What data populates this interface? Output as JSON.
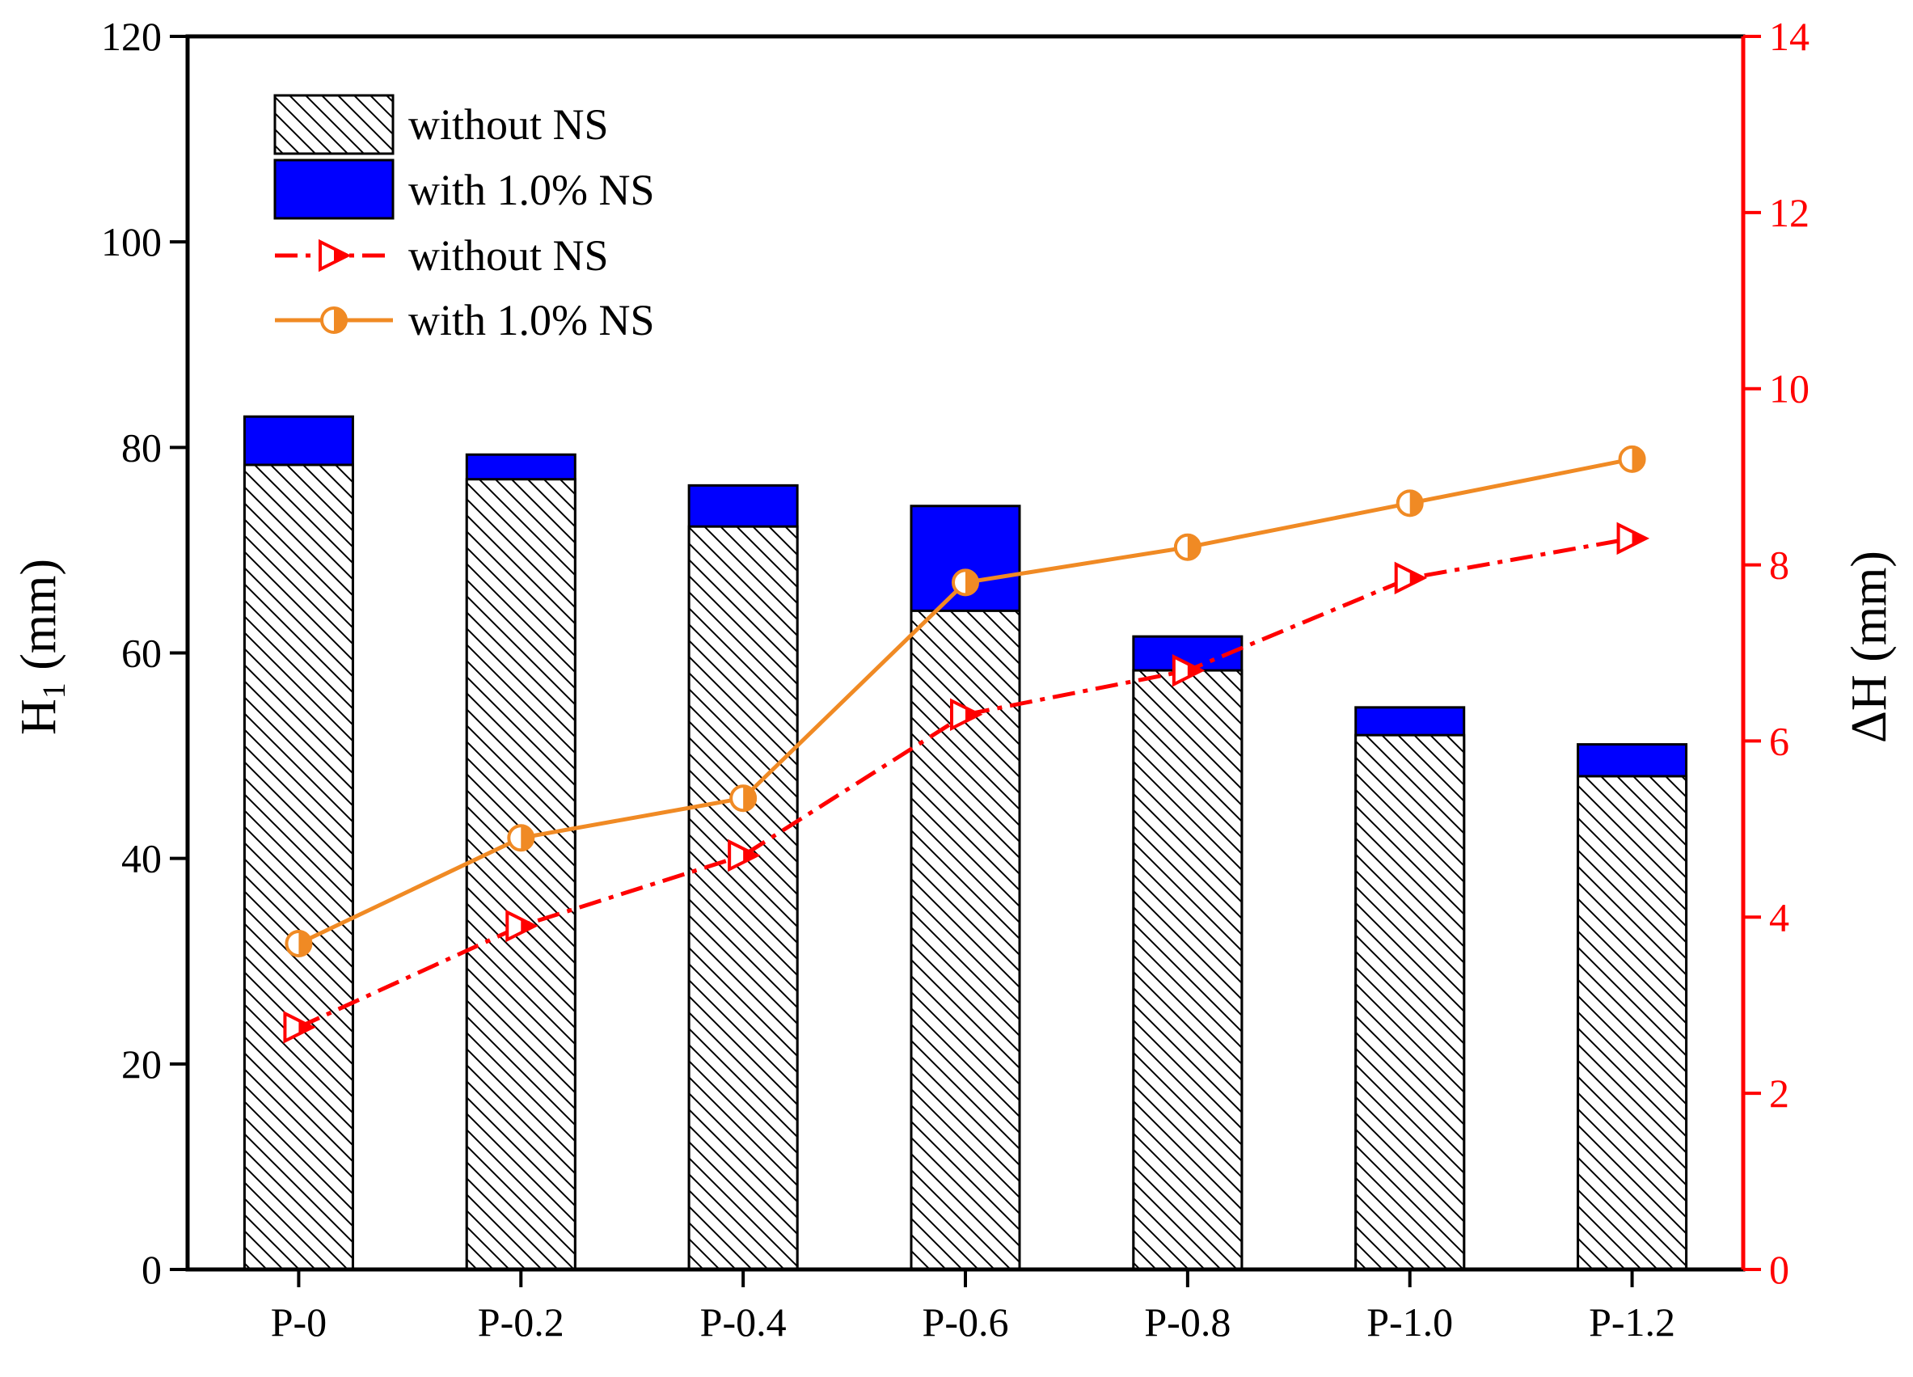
{
  "chart_data": {
    "type": "bar+line",
    "title": "",
    "categories": [
      "P-0",
      "P-0.2",
      "P-0.4",
      "P-0.6",
      "P-0.8",
      "P-1.0",
      "P-1.2"
    ],
    "bars": [
      {
        "name": "without NS",
        "style": "hatched",
        "values": [
          78.3,
          76.9,
          72.3,
          64.1,
          58.3,
          52.0,
          48.0
        ]
      },
      {
        "name": "with 1.0% NS",
        "style": "solid",
        "color": "#0000ff",
        "values": [
          83.0,
          79.3,
          76.3,
          74.3,
          61.6,
          54.7,
          51.1
        ]
      }
    ],
    "lines": [
      {
        "name": "without NS",
        "color": "#ff0000",
        "axis": "right",
        "dash": "dash-dot",
        "marker": "half-filled-right-triangle",
        "values": [
          2.75,
          3.9,
          4.7,
          6.3,
          6.8,
          7.85,
          8.3
        ]
      },
      {
        "name": "with 1.0% NS",
        "color": "#f08a24",
        "axis": "right",
        "dash": "solid",
        "marker": "half-filled-circle",
        "values": [
          3.7,
          4.9,
          5.35,
          7.8,
          8.2,
          8.7,
          9.2
        ]
      }
    ],
    "left_axis": {
      "label_main": "H",
      "label_sub": "1",
      "label_unit": " (mm)",
      "min": 0,
      "max": 120,
      "ticks": [
        0,
        20,
        40,
        60,
        80,
        100,
        120
      ]
    },
    "right_axis": {
      "label": "ΔH (mm)",
      "color": "#ff0000",
      "min": 0,
      "max": 14,
      "ticks": [
        0,
        2,
        4,
        6,
        8,
        10,
        12,
        14
      ]
    },
    "legend": {
      "position": "top-left",
      "entries": [
        "without NS",
        "with 1.0% NS",
        "without NS",
        "with 1.0% NS"
      ]
    }
  }
}
